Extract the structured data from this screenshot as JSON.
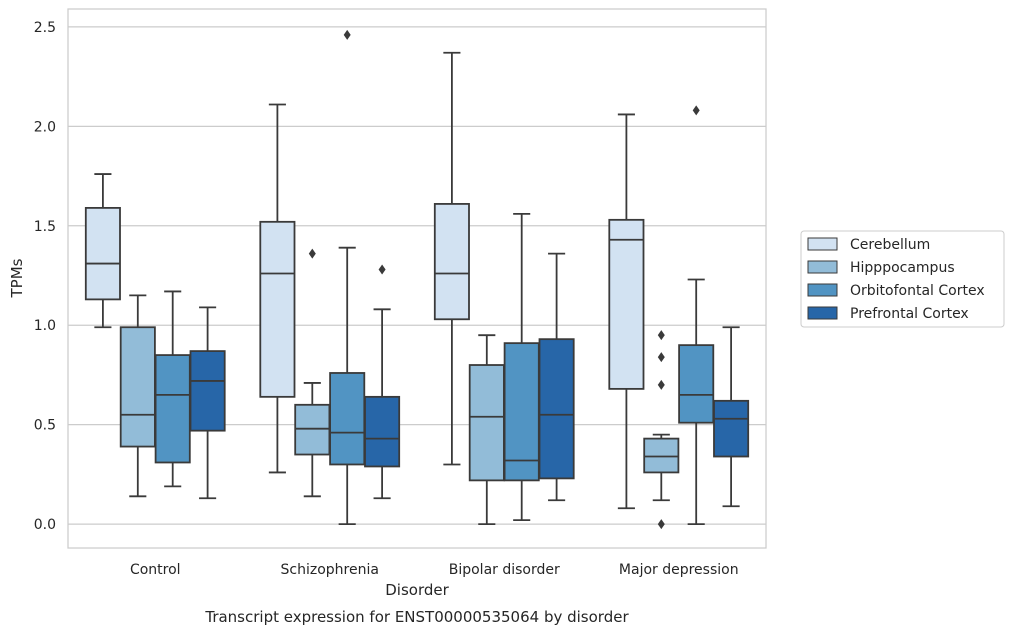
{
  "chart_data": {
    "type": "boxplot",
    "caption": "Transcript expression for ENST00000535064 by disorder",
    "xlabel": "Disorder",
    "ylabel": "TPMs",
    "ylim": [
      -0.12,
      2.59
    ],
    "yticks": [
      0.0,
      0.5,
      1.0,
      1.5,
      2.0,
      2.5
    ],
    "ytick_labels": [
      "0.0",
      "0.5",
      "1.0",
      "1.5",
      "2.0",
      "2.5"
    ],
    "categories": [
      "Control",
      "Schizophrenia",
      "Bipolar disorder",
      "Major depression"
    ],
    "grid": true,
    "legend_position": "right",
    "series": [
      {
        "name": "Cerebellum",
        "color": "#d2e2f2",
        "boxes": [
          {
            "whislo": 0.99,
            "q1": 1.13,
            "med": 1.31,
            "q3": 1.59,
            "whishi": 1.76,
            "fliers": []
          },
          {
            "whislo": 0.26,
            "q1": 0.64,
            "med": 1.26,
            "q3": 1.52,
            "whishi": 2.11,
            "fliers": []
          },
          {
            "whislo": 0.3,
            "q1": 1.03,
            "med": 1.26,
            "q3": 1.61,
            "whishi": 2.37,
            "fliers": []
          },
          {
            "whislo": 0.08,
            "q1": 0.68,
            "med": 1.43,
            "q3": 1.53,
            "whishi": 2.06,
            "fliers": []
          }
        ]
      },
      {
        "name": "Hipppocampus",
        "color": "#92bcd8",
        "boxes": [
          {
            "whislo": 0.14,
            "q1": 0.39,
            "med": 0.55,
            "q3": 0.99,
            "whishi": 1.15,
            "fliers": []
          },
          {
            "whislo": 0.14,
            "q1": 0.35,
            "med": 0.48,
            "q3": 0.6,
            "whishi": 0.71,
            "fliers": [
              1.36
            ]
          },
          {
            "whislo": 0.0,
            "q1": 0.22,
            "med": 0.54,
            "q3": 0.8,
            "whishi": 0.95,
            "fliers": []
          },
          {
            "whislo": 0.12,
            "q1": 0.26,
            "med": 0.34,
            "q3": 0.43,
            "whishi": 0.45,
            "fliers": [
              0.95,
              0.84,
              0.7,
              0.0
            ]
          }
        ]
      },
      {
        "name": "Orbitofontal Cortex",
        "color": "#5194c3",
        "boxes": [
          {
            "whislo": 0.19,
            "q1": 0.31,
            "med": 0.65,
            "q3": 0.85,
            "whishi": 1.17,
            "fliers": []
          },
          {
            "whislo": 0.0,
            "q1": 0.3,
            "med": 0.46,
            "q3": 0.76,
            "whishi": 1.39,
            "fliers": [
              2.46
            ]
          },
          {
            "whislo": 0.02,
            "q1": 0.22,
            "med": 0.32,
            "q3": 0.91,
            "whishi": 1.56,
            "fliers": []
          },
          {
            "whislo": 0.0,
            "q1": 0.51,
            "med": 0.65,
            "q3": 0.9,
            "whishi": 1.23,
            "fliers": [
              2.08
            ]
          }
        ]
      },
      {
        "name": "Prefrontal Cortex",
        "color": "#2766a8",
        "boxes": [
          {
            "whislo": 0.13,
            "q1": 0.47,
            "med": 0.72,
            "q3": 0.87,
            "whishi": 1.09,
            "fliers": []
          },
          {
            "whislo": 0.13,
            "q1": 0.29,
            "med": 0.43,
            "q3": 0.64,
            "whishi": 1.08,
            "fliers": [
              1.28
            ]
          },
          {
            "whislo": 0.12,
            "q1": 0.23,
            "med": 0.55,
            "q3": 0.93,
            "whishi": 1.36,
            "fliers": []
          },
          {
            "whislo": 0.09,
            "q1": 0.34,
            "med": 0.53,
            "q3": 0.62,
            "whishi": 0.99,
            "fliers": []
          }
        ]
      }
    ]
  }
}
